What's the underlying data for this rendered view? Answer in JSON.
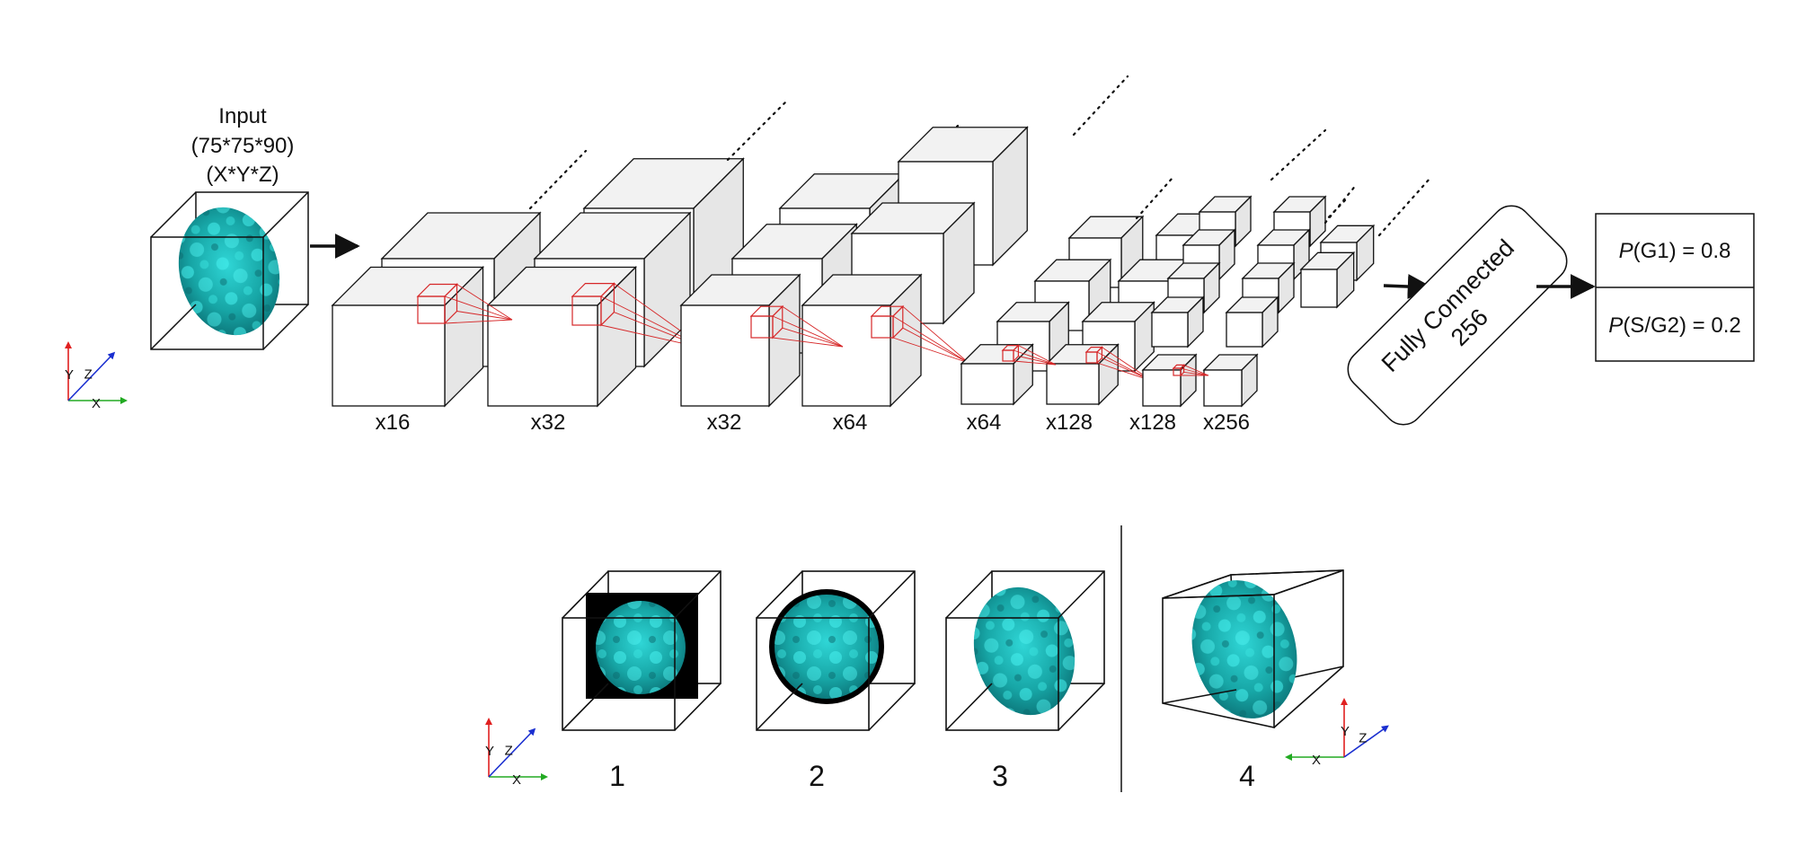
{
  "input": {
    "title": "Input",
    "dims": "(75*75*90)",
    "axes_order": "(X*Y*Z)"
  },
  "layers": [
    {
      "label": "x16"
    },
    {
      "label": "x32"
    },
    {
      "label": "x32"
    },
    {
      "label": "x64"
    },
    {
      "label": "x64"
    },
    {
      "label": "x128"
    },
    {
      "label": "x128"
    },
    {
      "label": "x256"
    }
  ],
  "fully_connected": {
    "line1": "Fully Connected",
    "line2": "256"
  },
  "outputs": [
    {
      "prob": "P",
      "rest": "(G1) = 0.8"
    },
    {
      "prob": "P",
      "rest": "(S/G2) = 0.2"
    }
  ],
  "augmentations": [
    {
      "label": "1"
    },
    {
      "label": "2"
    },
    {
      "label": "3"
    },
    {
      "label": "4"
    }
  ],
  "axes_labels": {
    "x": "X",
    "y": "Y",
    "z": "Z"
  },
  "colors": {
    "cube_front": "#ffffff",
    "cube_top": "#f2f2f2",
    "cube_side": "#e6e6e6",
    "kernel": "#d62728",
    "nucleus": "#1aa3a3",
    "axis_x": "#22aa22",
    "axis_y": "#e02020",
    "axis_z": "#1a2fd0"
  }
}
